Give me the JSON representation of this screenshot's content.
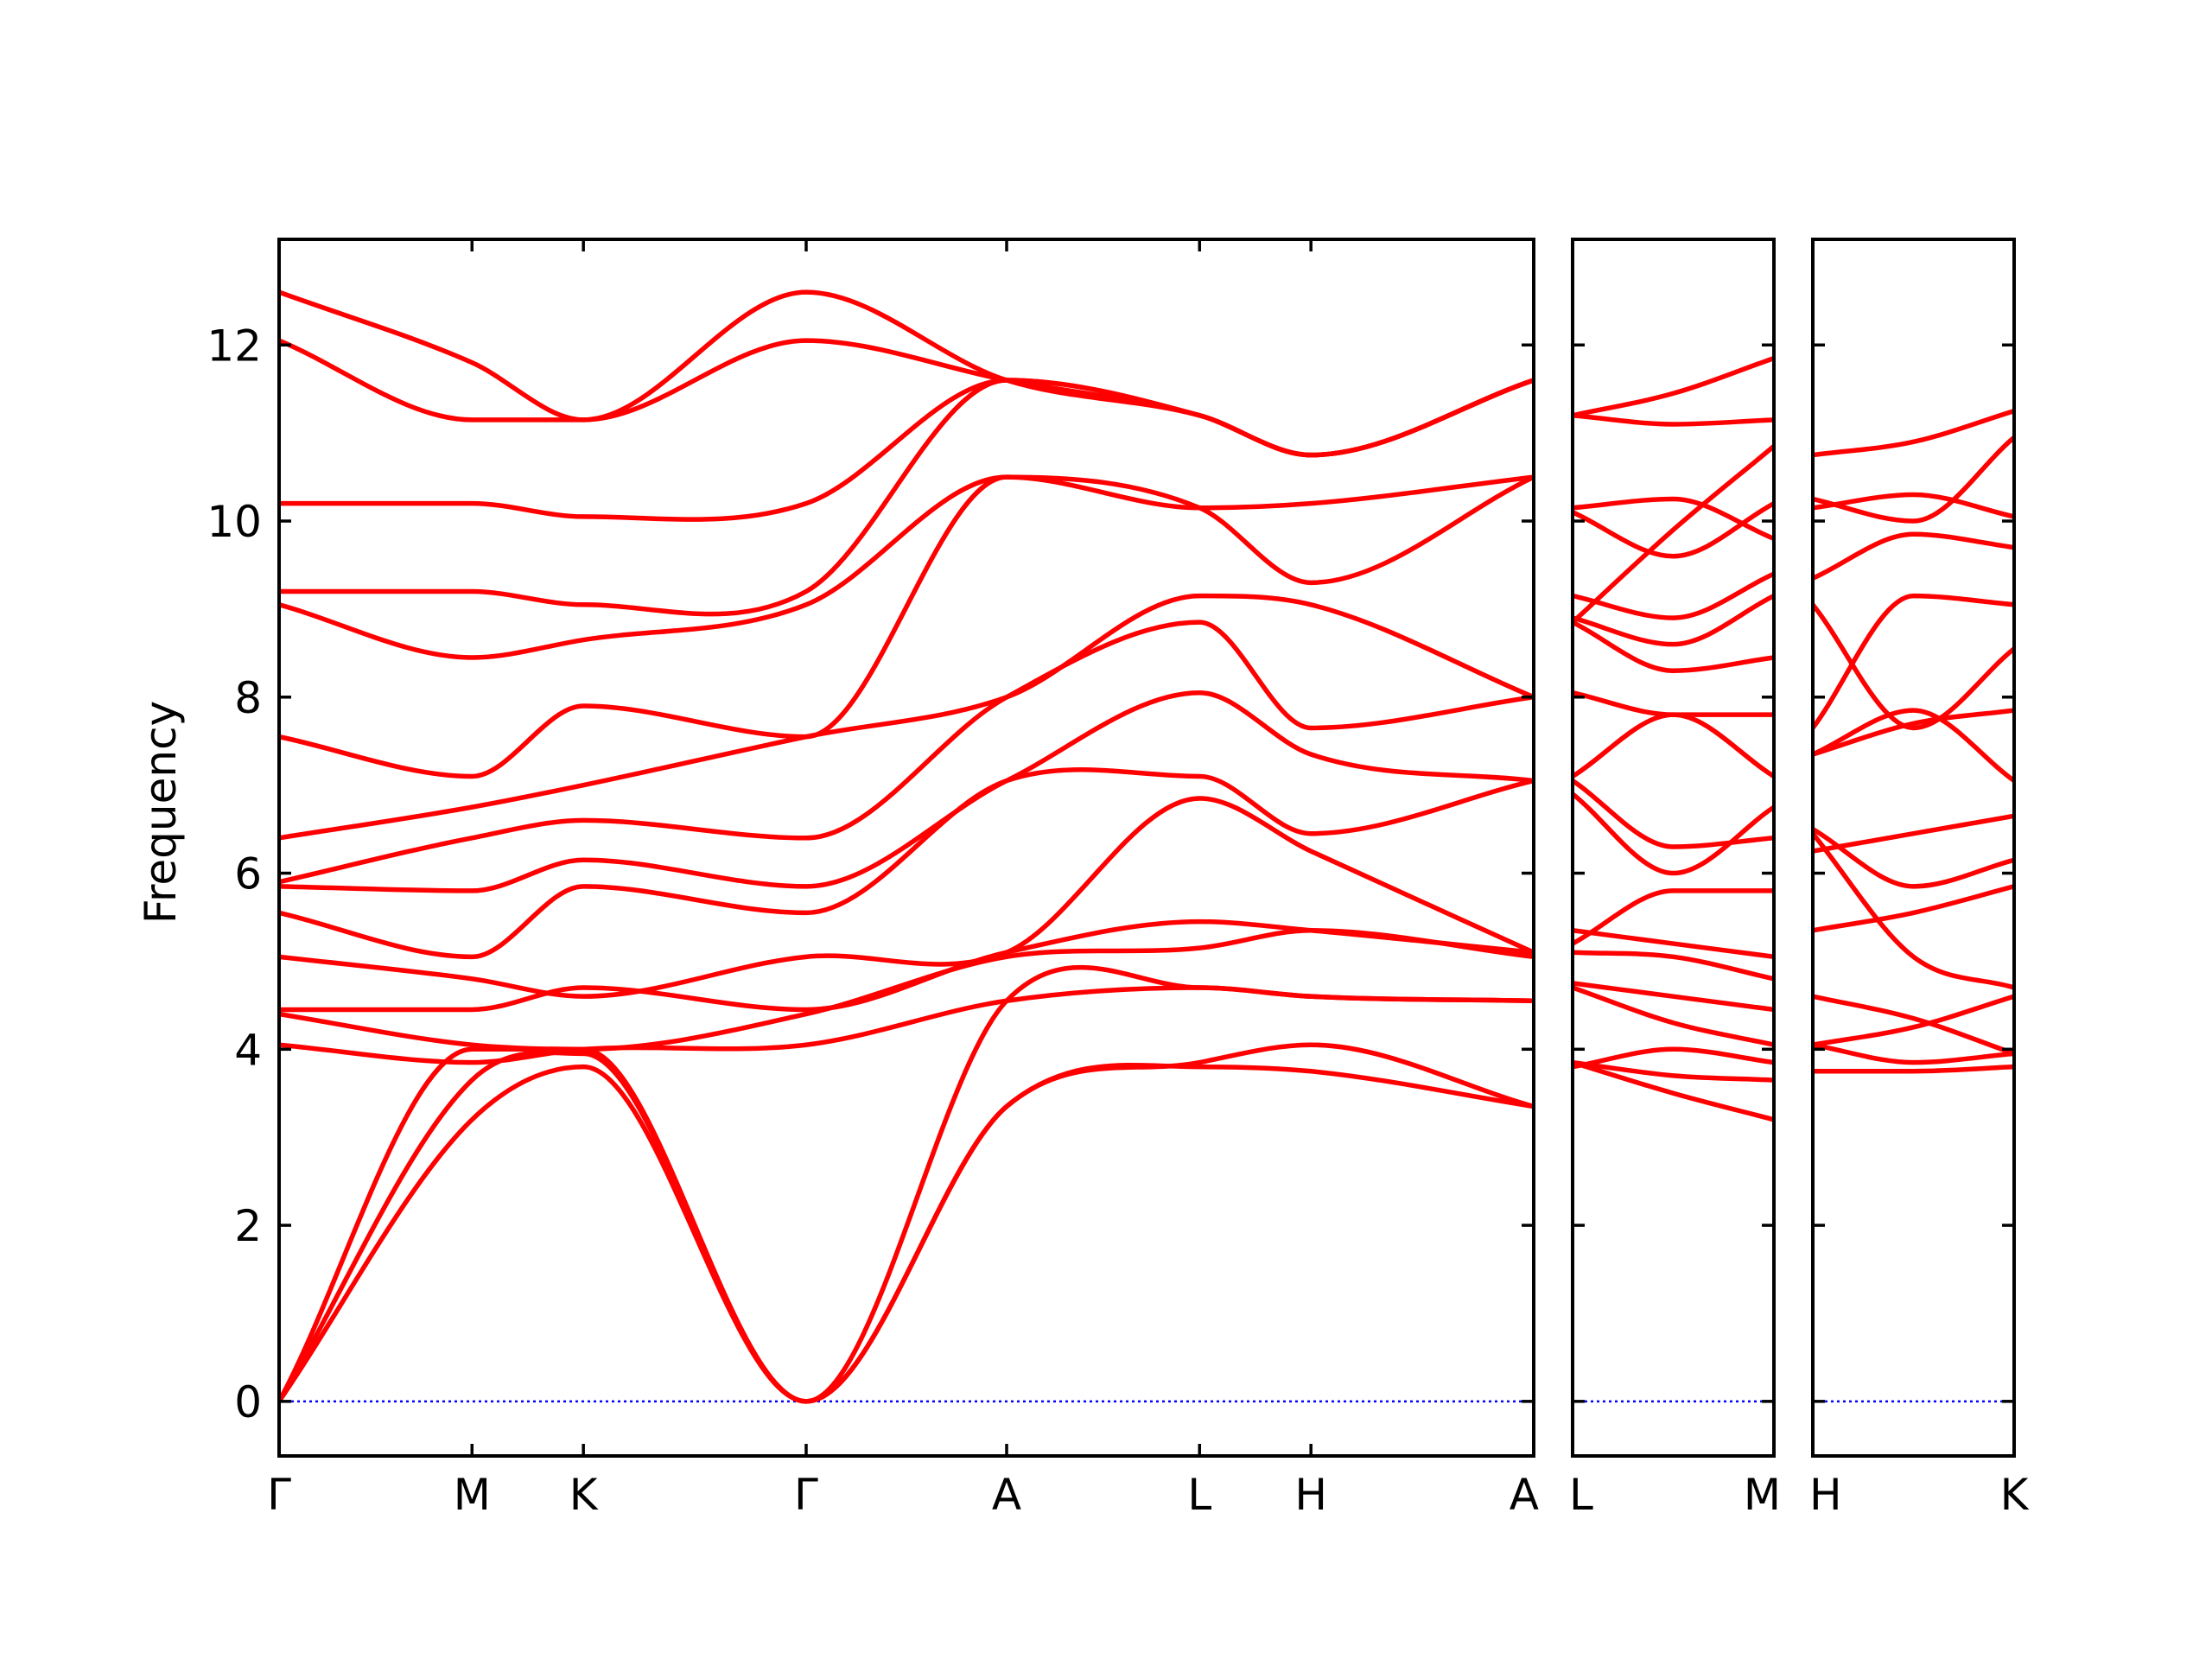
{
  "chart_data": {
    "type": "line",
    "title": "",
    "ylabel": "Frequency",
    "xlabel": "",
    "ylim": [
      -0.62,
      13.2
    ],
    "yticks": [
      0,
      2,
      4,
      6,
      8,
      10,
      12
    ],
    "grid": false,
    "colors": {
      "bands": "#ff0000",
      "zero_line": "#0000ff",
      "frame": "#000000"
    },
    "panels": [
      {
        "id": "panel-1",
        "labels": [
          "Γ",
          "M",
          "K",
          "Γ",
          "A",
          "L",
          "H",
          "A"
        ],
        "label_positions": [
          0,
          0.866,
          1.366,
          2.366,
          3.266,
          4.132,
          4.632,
          5.632
        ],
        "bands": [
          {
            "name": "",
            "x": [
              0,
              0.866,
              1.366,
              2.366,
              3.266,
              4.132,
              4.632,
              5.632
            ],
            "values": [
              0,
              3.2,
              3.8,
              0,
              3.35,
              3.8,
              3.75,
              3.35
            ]
          },
          {
            "name": "",
            "x": [
              0,
              0.866,
              1.366,
              2.366,
              3.266,
              4.132,
              4.632,
              5.632
            ],
            "values": [
              0,
              3.65,
              3.95,
              0,
              3.35,
              3.85,
              4.05,
              3.35
            ]
          },
          {
            "name": "",
            "x": [
              0,
              0.866,
              1.366,
              2.366,
              3.266,
              4.132,
              4.632,
              5.632
            ],
            "values": [
              0,
              4.0,
              4.0,
              0,
              4.55,
              4.7,
              4.6,
              4.55
            ]
          },
          {
            "name": "",
            "x": [
              0,
              0.866,
              1.366,
              2.366,
              3.266,
              4.132,
              4.632,
              5.632
            ],
            "values": [
              4.05,
              3.85,
              4.0,
              4.05,
              4.55,
              4.7,
              4.6,
              4.55
            ]
          },
          {
            "name": "",
            "x": [
              0,
              0.866,
              1.366,
              2.366,
              3.266,
              4.132,
              4.632,
              5.632
            ],
            "values": [
              4.4,
              4.05,
              4.0,
              4.4,
              5.05,
              5.15,
              5.35,
              5.05
            ]
          },
          {
            "name": "",
            "x": [
              0,
              0.866,
              1.366,
              2.366,
              3.266,
              4.132,
              4.632,
              5.632
            ],
            "values": [
              4.45,
              4.45,
              4.7,
              4.45,
              5.1,
              5.45,
              5.35,
              5.1
            ]
          },
          {
            "name": "",
            "x": [
              0,
              0.866,
              1.366,
              2.366,
              3.266,
              4.132,
              4.632,
              5.632
            ],
            "values": [
              5.05,
              4.8,
              4.6,
              5.05,
              5.1,
              6.85,
              6.25,
              5.1
            ]
          },
          {
            "name": "",
            "x": [
              0,
              0.866,
              1.366,
              2.366,
              3.266,
              4.132,
              4.632,
              5.632
            ],
            "values": [
              5.55,
              5.05,
              5.85,
              5.55,
              7.05,
              7.1,
              6.45,
              7.05
            ]
          },
          {
            "name": "",
            "x": [
              0,
              0.866,
              1.366,
              2.366,
              3.266,
              4.132,
              4.632,
              5.632
            ],
            "values": [
              5.85,
              5.8,
              6.15,
              5.85,
              7.05,
              8.05,
              7.35,
              7.05
            ]
          },
          {
            "name": "",
            "x": [
              0,
              0.866,
              1.366,
              2.366,
              3.266,
              4.132,
              4.632,
              5.632
            ],
            "values": [
              5.9,
              6.4,
              6.6,
              6.4,
              8.0,
              8.85,
              7.65,
              8.0
            ]
          },
          {
            "name": "",
            "x": [
              0,
              0.866,
              1.366,
              2.366,
              3.266,
              4.132,
              4.632,
              5.632
            ],
            "values": [
              6.4,
              6.75,
              7.0,
              7.55,
              8.0,
              9.15,
              9.05,
              8.0
            ]
          },
          {
            "name": "",
            "x": [
              0,
              0.866,
              1.366,
              2.366,
              3.266,
              4.132,
              4.632,
              5.632
            ],
            "values": [
              7.55,
              7.1,
              7.9,
              7.55,
              10.5,
              10.15,
              9.3,
              10.5
            ]
          },
          {
            "name": "",
            "x": [
              0,
              0.866,
              1.366,
              2.366,
              3.266,
              4.132,
              4.632,
              5.632
            ],
            "values": [
              9.05,
              8.45,
              8.65,
              9.05,
              10.5,
              10.15,
              10.2,
              10.5
            ]
          },
          {
            "name": "",
            "x": [
              0,
              0.866,
              1.366,
              2.366,
              3.266,
              4.132,
              4.632,
              5.632
            ],
            "values": [
              9.2,
              9.2,
              9.05,
              9.2,
              11.6,
              11.2,
              10.75,
              11.6
            ]
          },
          {
            "name": "",
            "x": [
              0,
              0.866,
              1.366,
              2.366,
              3.266,
              4.132,
              4.632,
              5.632
            ],
            "values": [
              10.2,
              10.2,
              10.05,
              10.2,
              11.6,
              11.2,
              10.75,
              11.6
            ]
          },
          {
            "name": "",
            "x": [
              0,
              0.866,
              1.366,
              2.366,
              3.266,
              4.132,
              4.632,
              5.632
            ],
            "values": [
              12.05,
              11.15,
              11.15,
              12.05,
              11.6,
              11.2,
              10.75,
              11.6
            ]
          },
          {
            "name": "",
            "x": [
              0,
              0.866,
              1.366,
              2.366,
              3.266,
              4.132,
              4.632,
              5.632
            ],
            "values": [
              12.6,
              11.8,
              11.15,
              12.6,
              11.6,
              11.2,
              10.75,
              11.6
            ]
          }
        ]
      },
      {
        "id": "panel-2",
        "labels": [
          "L",
          "M"
        ],
        "label_positions": [
          0,
          1
        ],
        "bands": [
          {
            "name": "",
            "x": [
              0,
              0.5,
              1
            ],
            "values": [
              3.85,
              3.5,
              3.2
            ]
          },
          {
            "name": "",
            "x": [
              0,
              0.5,
              1
            ],
            "values": [
              3.85,
              3.7,
              3.65
            ]
          },
          {
            "name": "",
            "x": [
              0,
              0.5,
              1
            ],
            "values": [
              3.8,
              4.0,
              3.85
            ]
          },
          {
            "name": "",
            "x": [
              0,
              0.5,
              1
            ],
            "values": [
              4.7,
              4.3,
              4.05
            ]
          },
          {
            "name": "",
            "x": [
              0,
              0.5,
              1
            ],
            "values": [
              4.75,
              4.6,
              4.45
            ]
          },
          {
            "name": "",
            "x": [
              0,
              0.5,
              1
            ],
            "values": [
              5.1,
              5.05,
              4.8
            ]
          },
          {
            "name": "",
            "x": [
              0,
              0.5,
              1
            ],
            "values": [
              5.35,
              5.2,
              5.05
            ]
          },
          {
            "name": "",
            "x": [
              0,
              0.5,
              1
            ],
            "values": [
              5.2,
              5.8,
              5.8
            ]
          },
          {
            "name": "",
            "x": [
              0,
              0.5,
              1
            ],
            "values": [
              7.05,
              6.3,
              6.4
            ]
          },
          {
            "name": "",
            "x": [
              0,
              0.5,
              1
            ],
            "values": [
              6.9,
              6.0,
              6.75
            ]
          },
          {
            "name": "",
            "x": [
              0,
              0.5,
              1
            ],
            "values": [
              7.1,
              7.8,
              7.1
            ]
          },
          {
            "name": "",
            "x": [
              0,
              0.5,
              1
            ],
            "values": [
              8.05,
              7.8,
              7.8
            ]
          },
          {
            "name": "",
            "x": [
              0,
              0.5,
              1
            ],
            "values": [
              8.85,
              8.3,
              8.45
            ]
          },
          {
            "name": "",
            "x": [
              0,
              0.5,
              1
            ],
            "values": [
              8.9,
              8.6,
              9.15
            ]
          },
          {
            "name": "",
            "x": [
              0,
              0.5,
              1
            ],
            "values": [
              9.15,
              8.9,
              9.4
            ]
          },
          {
            "name": "",
            "x": [
              0,
              0.5,
              1
            ],
            "values": [
              10.15,
              10.25,
              9.8
            ]
          },
          {
            "name": "",
            "x": [
              0,
              0.5,
              1
            ],
            "values": [
              10.1,
              9.6,
              10.2
            ]
          },
          {
            "name": "",
            "x": [
              0,
              0.5,
              1
            ],
            "values": [
              8.85,
              9.9,
              10.85
            ]
          },
          {
            "name": "",
            "x": [
              0,
              0.5,
              1
            ],
            "values": [
              11.2,
              11.1,
              11.15
            ]
          },
          {
            "name": "",
            "x": [
              0,
              0.5,
              1
            ],
            "values": [
              11.2,
              11.45,
              11.85
            ]
          }
        ]
      },
      {
        "id": "panel-3",
        "labels": [
          "H",
          "K"
        ],
        "label_positions": [
          0,
          1
        ],
        "bands": [
          {
            "name": "",
            "x": [
              0,
              0.5,
              1
            ],
            "values": [
              3.75,
              3.75,
              3.8
            ]
          },
          {
            "name": "",
            "x": [
              0,
              0.5,
              1
            ],
            "values": [
              4.05,
              3.85,
              3.95
            ]
          },
          {
            "name": "",
            "x": [
              0,
              0.5,
              1
            ],
            "values": [
              4.05,
              4.25,
              4.6
            ]
          },
          {
            "name": "",
            "x": [
              0,
              0.5,
              1
            ],
            "values": [
              4.6,
              4.35,
              3.95
            ]
          },
          {
            "name": "",
            "x": [
              0,
              0.5,
              1
            ],
            "values": [
              5.35,
              5.55,
              5.85
            ]
          },
          {
            "name": "",
            "x": [
              0,
              0.5,
              1
            ],
            "values": [
              6.25,
              6.45,
              6.65
            ]
          },
          {
            "name": "",
            "x": [
              0,
              0.5,
              1
            ],
            "values": [
              6.5,
              5.85,
              6.15
            ]
          },
          {
            "name": "",
            "x": [
              0,
              0.5,
              1
            ],
            "values": [
              6.45,
              5.05,
              4.7
            ]
          },
          {
            "name": "",
            "x": [
              0,
              0.5,
              1
            ],
            "values": [
              7.35,
              7.7,
              7.85
            ]
          },
          {
            "name": "",
            "x": [
              0,
              0.5,
              1
            ],
            "values": [
              7.35,
              7.85,
              7.05
            ]
          },
          {
            "name": "",
            "x": [
              0,
              0.5,
              1
            ],
            "values": [
              9.05,
              7.65,
              8.55
            ]
          },
          {
            "name": "",
            "x": [
              0,
              0.5,
              1
            ],
            "values": [
              7.65,
              9.15,
              9.05
            ]
          },
          {
            "name": "",
            "x": [
              0,
              0.5,
              1
            ],
            "values": [
              9.35,
              9.85,
              9.7
            ]
          },
          {
            "name": "",
            "x": [
              0,
              0.5,
              1
            ],
            "values": [
              10.15,
              10.3,
              10.05
            ]
          },
          {
            "name": "",
            "x": [
              0,
              0.5,
              1
            ],
            "values": [
              10.25,
              10.0,
              10.95
            ]
          },
          {
            "name": "",
            "x": [
              0,
              0.5,
              1
            ],
            "values": [
              10.75,
              10.9,
              11.25
            ]
          }
        ]
      }
    ]
  }
}
